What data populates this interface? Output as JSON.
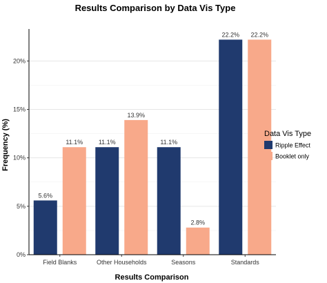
{
  "chart_data": {
    "type": "bar",
    "title": "Results Comparison by Data Vis Type",
    "xlabel": "Results Comparison",
    "ylabel": "Frequency (%)",
    "categories": [
      "Field Blanks",
      "Other Households",
      "Seasons",
      "Standards"
    ],
    "series": [
      {
        "name": "Ripple Effect",
        "values": [
          5.6,
          11.1,
          11.1,
          22.2
        ],
        "labels": [
          "5.6%",
          "11.1%",
          "11.1%",
          "22.2%"
        ],
        "color": "#203a6e"
      },
      {
        "name": "Booklet only",
        "values": [
          11.1,
          13.9,
          2.8,
          22.2
        ],
        "labels": [
          "11.1%",
          "13.9%",
          "2.8%",
          "22.2%"
        ],
        "color": "#f8a98a"
      }
    ],
    "ylim": [
      0,
      23.3
    ],
    "yticks": [
      0,
      5,
      10,
      15,
      20
    ],
    "ytick_labels": [
      "0%",
      "5%",
      "10%",
      "15%",
      "20%"
    ],
    "legend": {
      "title": "Data Vis Type",
      "position": "right"
    },
    "grid": true
  }
}
